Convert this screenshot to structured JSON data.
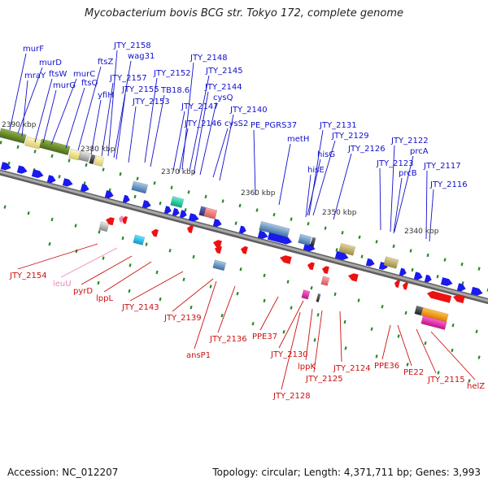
{
  "title": "Mycobacterium bovis BCG str. Tokyo 172, complete genome",
  "footer": {
    "accession": "Accession: NC_012207",
    "summary": "Topology: circular; Length: 4,371,711 bp; Genes: 3,993"
  },
  "colors": {
    "forward_label": "#1010cc",
    "reverse_label": "#cc1010",
    "rna_label": "#ee88bb",
    "forward_gene": "#1a1aee",
    "reverse_gene": "#ee1111",
    "backbone": "#8a8a8a",
    "tick": "#2a8a2a",
    "kbp_label": "#333333"
  },
  "scale_labels": [
    "2390 kbp",
    "2380 kbp",
    "2370 kbp",
    "2360 kbp",
    "2350 kbp",
    "2340 kbp"
  ],
  "forward_genes": [
    "murF",
    "murD",
    "mraY",
    "ftsW",
    "murC",
    "murG",
    "ftsQ",
    "ftsZ",
    "yfiH",
    "JTY_2158",
    "wag31",
    "JTY_2157",
    "JTY_2155",
    "JTY_2153",
    "JTY_2152",
    "TB18.6",
    "JTY_2148",
    "JTY_2147",
    "JTY_2146",
    "JTY_2145",
    "JTY_2144",
    "cysQ",
    "cysS2",
    "JTY_2140",
    "PE_PGRS37",
    "metH",
    "JTY_2131",
    "JTY_2129",
    "hisG",
    "hisE",
    "JTY_2126",
    "JTY_2123",
    "JTY_2122",
    "prcA",
    "prcB",
    "JTY_2117",
    "JTY_2116"
  ],
  "reverse_genes": [
    "JTY_2154",
    "leuU",
    "pyrD",
    "lppL",
    "JTY_2143",
    "JTY_2139",
    "ansP1",
    "JTY_2136",
    "PPE37",
    "JTY_2130",
    "lppK",
    "JTY_2128",
    "JTY_2125",
    "JTY_2124",
    "PPE36",
    "PE22",
    "JTY_2115",
    "helZ"
  ]
}
